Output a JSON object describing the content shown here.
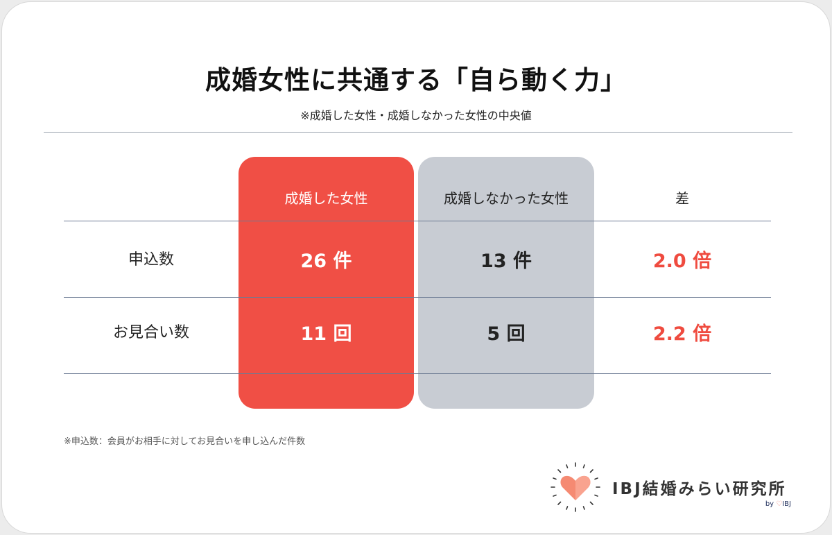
{
  "title": "成婚女性に共通する「自ら動く力」",
  "subtitle": "※成婚した女性・成婚しなかった女性の中央値",
  "chart_data": {
    "type": "table",
    "columns": [
      "成婚した女性",
      "成婚しなかった女性",
      "差"
    ],
    "rows": [
      {
        "label": "申込数",
        "married": "26 件",
        "unmarried": "13 件",
        "diff": "2.0 倍",
        "married_value": 26,
        "unmarried_value": 13,
        "ratio": 2.0,
        "unit": "件"
      },
      {
        "label": "お見合い数",
        "married": "11 回",
        "unmarried": "5 回",
        "diff": "2.2 倍",
        "married_value": 11,
        "unmarried_value": 5,
        "ratio": 2.2,
        "unit": "回"
      }
    ],
    "colors": {
      "married": "#f04f45",
      "unmarried": "#c8ccd3",
      "diff_text": "#ef4b3f"
    }
  },
  "footnote": "※申込数：会員がお相手に対してお見合いを申し込んだ件数",
  "logo": {
    "text": "IBJ結婚みらい研究所",
    "by_prefix": "by",
    "by_heart": "♡",
    "by_brand": "IBJ"
  }
}
